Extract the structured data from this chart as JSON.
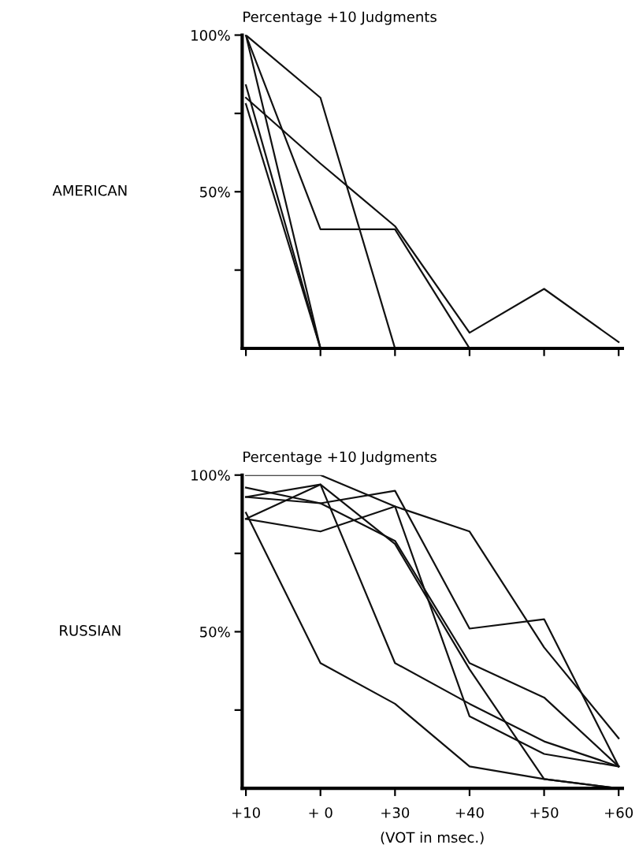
{
  "chart_data": [
    {
      "type": "line",
      "title": "Percentage +10 Judgments",
      "ylabel": "AMERICAN",
      "categories": [
        null,
        null,
        null,
        null,
        null,
        null
      ],
      "series": [
        {
          "color": "#111111",
          "values": [
            100,
            80,
            0,
            null,
            null,
            null
          ]
        },
        {
          "color": "#111111",
          "values": [
            100,
            38,
            38,
            0,
            null,
            null
          ]
        },
        {
          "color": "#111111",
          "values": [
            80,
            59,
            39,
            5,
            19,
            2
          ]
        },
        {
          "color": "#111111",
          "values": [
            100,
            0,
            null,
            null,
            null,
            null
          ]
        },
        {
          "color": "#111111",
          "values": [
            84,
            0,
            null,
            null,
            null,
            null
          ]
        },
        {
          "color": "#111111",
          "values": [
            78,
            0,
            null,
            null,
            null,
            null
          ]
        }
      ],
      "ylim": [
        0,
        100
      ],
      "yticks": [
        {
          "value": 25,
          "label": null
        },
        {
          "value": 50,
          "label": "50%"
        },
        {
          "value": 75,
          "label": null
        },
        {
          "value": 100,
          "label": "100%"
        }
      ],
      "tick_labels": "y",
      "grid": false,
      "marker": "none",
      "line_style": "solid"
    },
    {
      "type": "line",
      "title": "Percentage +10 Judgments",
      "ylabel": "RUSSIAN",
      "xlabel": "(VOT in msec.)",
      "categories": [
        "+10",
        "+ 0",
        "+30",
        "+40",
        "+50",
        "+60"
      ],
      "series": [
        {
          "color": "#111111",
          "values": [
            100,
            100,
            90,
            82,
            45,
            16
          ]
        },
        {
          "color": "#111111",
          "values": [
            93,
            91,
            95,
            51,
            54,
            7
          ]
        },
        {
          "color": "#111111",
          "values": [
            86,
            97,
            40,
            27,
            15,
            7
          ]
        },
        {
          "color": "#111111",
          "values": [
            88,
            40,
            27,
            7,
            3,
            0
          ]
        },
        {
          "color": "#111111",
          "values": [
            96,
            91,
            79,
            40,
            29,
            7
          ]
        },
        {
          "color": "#111111",
          "values": [
            93,
            97,
            78,
            38,
            3,
            0
          ]
        },
        {
          "color": "#111111",
          "values": [
            86,
            82,
            90,
            23,
            11,
            7
          ]
        }
      ],
      "ylim": [
        0,
        100
      ],
      "yticks": [
        {
          "value": 25,
          "label": null
        },
        {
          "value": 50,
          "label": "50%"
        },
        {
          "value": 75,
          "label": null
        },
        {
          "value": 100,
          "label": "100%"
        }
      ],
      "grid": false,
      "marker": "none",
      "line_style": "solid"
    }
  ]
}
